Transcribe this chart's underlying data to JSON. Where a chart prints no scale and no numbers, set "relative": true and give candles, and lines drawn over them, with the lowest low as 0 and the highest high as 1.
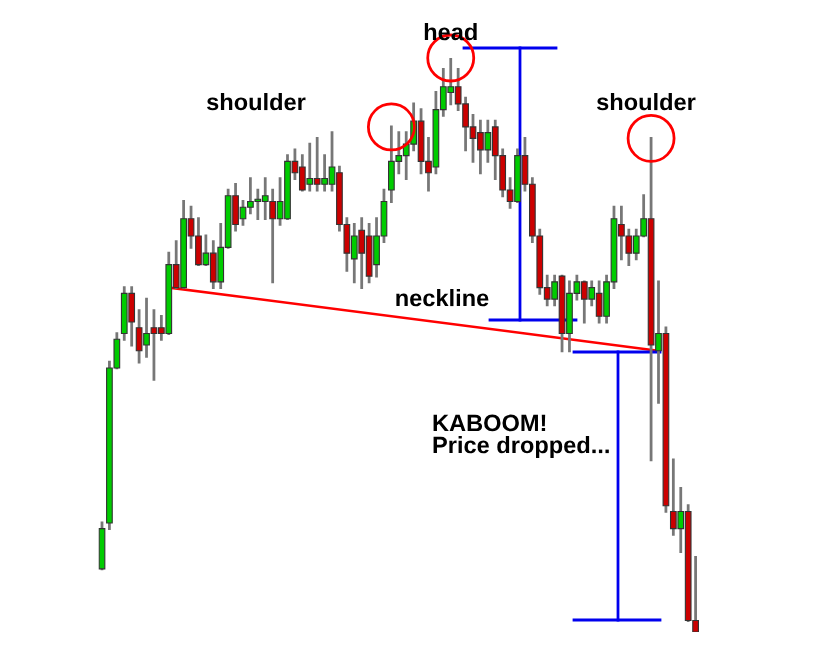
{
  "chart_data": {
    "type": "candlestick",
    "relative": true,
    "categories": [
      null,
      null,
      null,
      null,
      null,
      null,
      null,
      null,
      null,
      null,
      null,
      null,
      null,
      null,
      null,
      null,
      null,
      null,
      null,
      null,
      null,
      null,
      null,
      null,
      null,
      null,
      null,
      null,
      null,
      null,
      null,
      null,
      null,
      null,
      null,
      null,
      null,
      null,
      null,
      null,
      null,
      null,
      null,
      null,
      null,
      null,
      null,
      null,
      null,
      null,
      null,
      null,
      null,
      null,
      null,
      null,
      null,
      null,
      null,
      null,
      null,
      null,
      null,
      null,
      null,
      null,
      null,
      null,
      null,
      null,
      null,
      null,
      null,
      null,
      null,
      null,
      null,
      null,
      null,
      null,
      null
    ],
    "ohlc": [
      [
        0.11,
        0.19,
        0.11,
        0.18
      ],
      [
        0.19,
        0.47,
        0.18,
        0.46
      ],
      [
        0.46,
        0.52,
        0.46,
        0.51
      ],
      [
        0.52,
        0.6,
        0.51,
        0.59
      ],
      [
        0.59,
        0.6,
        0.5,
        0.54
      ],
      [
        0.53,
        0.56,
        0.47,
        0.49
      ],
      [
        0.5,
        0.58,
        0.48,
        0.52
      ],
      [
        0.53,
        0.56,
        0.44,
        0.52
      ],
      [
        0.53,
        0.55,
        0.51,
        0.52
      ],
      [
        0.52,
        0.66,
        0.52,
        0.64
      ],
      [
        0.64,
        0.68,
        0.6,
        0.6
      ],
      [
        0.6,
        0.75,
        0.6,
        0.72
      ],
      [
        0.72,
        0.74,
        0.67,
        0.69
      ],
      [
        0.69,
        0.72,
        0.64,
        0.64
      ],
      [
        0.64,
        0.69,
        0.64,
        0.66
      ],
      [
        0.66,
        0.68,
        0.6,
        0.61
      ],
      [
        0.61,
        0.71,
        0.6,
        0.67
      ],
      [
        0.67,
        0.77,
        0.67,
        0.76
      ],
      [
        0.76,
        0.78,
        0.7,
        0.71
      ],
      [
        0.72,
        0.75,
        0.71,
        0.74
      ],
      [
        0.74,
        0.79,
        0.73,
        0.75
      ],
      [
        0.75,
        0.77,
        0.72,
        0.75
      ],
      [
        0.75,
        0.79,
        0.72,
        0.76
      ],
      [
        0.75,
        0.77,
        0.61,
        0.72
      ],
      [
        0.72,
        0.79,
        0.71,
        0.75
      ],
      [
        0.72,
        0.83,
        0.72,
        0.82
      ],
      [
        0.82,
        0.84,
        0.79,
        0.8
      ],
      [
        0.81,
        0.83,
        0.77,
        0.77
      ],
      [
        0.78,
        0.85,
        0.77,
        0.79
      ],
      [
        0.79,
        0.86,
        0.77,
        0.78
      ],
      [
        0.78,
        0.83,
        0.77,
        0.79
      ],
      [
        0.78,
        0.87,
        0.77,
        0.81
      ],
      [
        0.8,
        0.81,
        0.7,
        0.71
      ],
      [
        0.71,
        0.72,
        0.63,
        0.66
      ],
      [
        0.65,
        0.71,
        0.61,
        0.69
      ],
      [
        0.7,
        0.72,
        0.6,
        0.66
      ],
      [
        0.69,
        0.71,
        0.61,
        0.62
      ],
      [
        0.64,
        0.72,
        0.62,
        0.69
      ],
      [
        0.69,
        0.77,
        0.68,
        0.75
      ],
      [
        0.77,
        0.88,
        0.75,
        0.82
      ],
      [
        0.82,
        0.87,
        0.8,
        0.83
      ],
      [
        0.83,
        0.87,
        0.79,
        0.85
      ],
      [
        0.85,
        0.92,
        0.84,
        0.89
      ],
      [
        0.89,
        0.91,
        0.8,
        0.82
      ],
      [
        0.82,
        0.86,
        0.77,
        0.8
      ],
      [
        0.81,
        0.94,
        0.8,
        0.91
      ],
      [
        0.91,
        0.98,
        0.9,
        0.95
      ],
      [
        0.94,
        1.0,
        0.92,
        0.95
      ],
      [
        0.95,
        0.98,
        0.91,
        0.92
      ],
      [
        0.92,
        0.93,
        0.84,
        0.88
      ],
      [
        0.88,
        0.9,
        0.82,
        0.86
      ],
      [
        0.87,
        0.89,
        0.8,
        0.84
      ],
      [
        0.84,
        0.89,
        0.82,
        0.87
      ],
      [
        0.88,
        0.89,
        0.79,
        0.83
      ],
      [
        0.83,
        0.84,
        0.76,
        0.77
      ],
      [
        0.77,
        0.79,
        0.74,
        0.75
      ],
      [
        0.75,
        0.84,
        0.75,
        0.83
      ],
      [
        0.83,
        0.86,
        0.77,
        0.78
      ],
      [
        0.78,
        0.79,
        0.68,
        0.69
      ],
      [
        0.69,
        0.7,
        0.59,
        0.6
      ],
      [
        0.6,
        0.62,
        0.57,
        0.58
      ],
      [
        0.58,
        0.62,
        0.57,
        0.61
      ],
      [
        0.62,
        0.62,
        0.49,
        0.52
      ],
      [
        0.52,
        0.61,
        0.49,
        0.59
      ],
      [
        0.59,
        0.62,
        0.58,
        0.61
      ],
      [
        0.61,
        0.61,
        0.54,
        0.58
      ],
      [
        0.58,
        0.61,
        0.57,
        0.6
      ],
      [
        0.59,
        0.61,
        0.54,
        0.55
      ],
      [
        0.55,
        0.62,
        0.54,
        0.61
      ],
      [
        0.61,
        0.74,
        0.6,
        0.72
      ],
      [
        0.71,
        0.74,
        0.65,
        0.69
      ],
      [
        0.69,
        0.7,
        0.64,
        0.66
      ],
      [
        0.66,
        0.7,
        0.65,
        0.69
      ],
      [
        0.69,
        0.76,
        0.69,
        0.72
      ],
      [
        0.72,
        0.86,
        0.3,
        0.5
      ],
      [
        0.49,
        0.61,
        0.4,
        0.52
      ],
      [
        0.52,
        0.53,
        0.21,
        0.22
      ],
      [
        0.21,
        0.3,
        0.17,
        0.18
      ],
      [
        0.18,
        0.25,
        0.14,
        0.21
      ],
      [
        0.21,
        0.22,
        0.02,
        0.02
      ],
      [
        0.02,
        0.13,
        0.0,
        0.0
      ]
    ],
    "colors": [
      "#00cc00",
      "#00cc00",
      "#00cc00",
      "#00cc00",
      "#cc0000",
      "#cc0000",
      "#00cc00",
      "#cc0000",
      "#cc0000",
      "#00cc00",
      "#cc0000",
      "#00cc00",
      "#cc0000",
      "#cc0000",
      "#00cc00",
      "#cc0000",
      "#00cc00",
      "#00cc00",
      "#cc0000",
      "#00cc00",
      "#00cc00",
      "#00cc00",
      "#00cc00",
      "#cc0000",
      "#00cc00",
      "#00cc00",
      "#cc0000",
      "#cc0000",
      "#00cc00",
      "#cc0000",
      "#00cc00",
      "#00cc00",
      "#cc0000",
      "#cc0000",
      "#00cc00",
      "#cc0000",
      "#cc0000",
      "#00cc00",
      "#00cc00",
      "#00cc00",
      "#00cc00",
      "#00cc00",
      "#00cc00",
      "#cc0000",
      "#cc0000",
      "#00cc00",
      "#00cc00",
      "#00cc00",
      "#cc0000",
      "#cc0000",
      "#cc0000",
      "#cc0000",
      "#00cc00",
      "#cc0000",
      "#cc0000",
      "#cc0000",
      "#00cc00",
      "#cc0000",
      "#cc0000",
      "#cc0000",
      "#cc0000",
      "#00cc00",
      "#cc0000",
      "#00cc00",
      "#00cc00",
      "#cc0000",
      "#00cc00",
      "#cc0000",
      "#00cc00",
      "#00cc00",
      "#cc0000",
      "#cc0000",
      "#00cc00",
      "#00cc00",
      "#cc0000",
      "#00cc00",
      "#cc0000",
      "#cc0000",
      "#00cc00",
      "#cc0000",
      "#cc0000"
    ],
    "series": [
      {
        "type": "line",
        "color": "#ff0000",
        "values": [
          null,
          null,
          null,
          null,
          null,
          null,
          null,
          null,
          null,
          0.6,
          null,
          null,
          null,
          null,
          null,
          null,
          null,
          null,
          null,
          null,
          null,
          null,
          null,
          null,
          null,
          null,
          null,
          null,
          null,
          null,
          null,
          null,
          null,
          null,
          null,
          null,
          null,
          null,
          null,
          null,
          null,
          null,
          null,
          null,
          null,
          null,
          null,
          null,
          null,
          null,
          null,
          null,
          null,
          null,
          null,
          null,
          null,
          null,
          null,
          null,
          null,
          null,
          null,
          null,
          null,
          null,
          null,
          null,
          null,
          null,
          null,
          null,
          null,
          null,
          null,
          0.49,
          null,
          null,
          null,
          null,
          null
        ]
      }
    ],
    "annotations": [
      "shoulder",
      "head",
      "shoulder",
      "neckline",
      "KABOOM!\nPrice dropped..."
    ]
  }
}
